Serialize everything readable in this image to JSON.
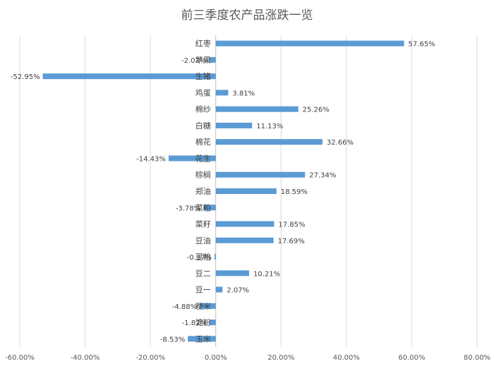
{
  "chart_data": {
    "type": "bar",
    "orientation": "horizontal",
    "title": "前三季度农产品涨跌一览",
    "xlabel": "",
    "ylabel": "",
    "xlim": [
      -0.6,
      0.8
    ],
    "x_ticks": [
      -0.6,
      -0.4,
      -0.2,
      0,
      0.2,
      0.4,
      0.6,
      0.8
    ],
    "x_tick_labels": [
      "-60.00%",
      "-40.00%",
      "-20.00%",
      "0.00%",
      "20.00%",
      "40.00%",
      "60.00%",
      "80.00%"
    ],
    "grid": "vertical",
    "bar_color": "#5b9bd5",
    "categories": [
      "红枣",
      "苹果",
      "生猪",
      "鸡蛋",
      "棉纱",
      "白糖",
      "棉花",
      "花生",
      "棕榈",
      "郑油",
      "菜粕",
      "菜籽",
      "豆油",
      "豆粕",
      "豆二",
      "豆一",
      "粳米",
      "淀粉",
      "玉米"
    ],
    "values": [
      0.5765,
      -0.0202,
      -0.5295,
      0.0381,
      0.2526,
      0.1113,
      0.3266,
      -0.1443,
      0.2734,
      0.1859,
      -0.0378,
      0.1785,
      0.1769,
      -0.0037,
      0.1021,
      0.0207,
      -0.0488,
      -0.0187,
      -0.0853
    ],
    "data_labels": [
      "57.65%",
      "-2.02%",
      "-52.95%",
      "3.81%",
      "25.26%",
      "11.13%",
      "32.66%",
      "-14.43%",
      "27.34%",
      "18.59%",
      "-3.78%",
      "17.85%",
      "17.69%",
      "-0.37%",
      "10.21%",
      "2.07%",
      "-4.88%",
      "-1.87%",
      "-8.53%"
    ]
  }
}
